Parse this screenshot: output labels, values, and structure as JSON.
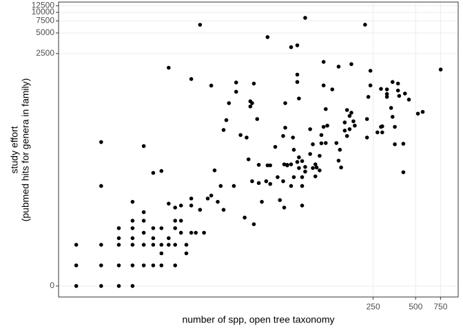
{
  "chart_data": {
    "type": "scatter",
    "xlabel": "number of spp, open tree taxonomy",
    "ylabel": [
      "study effort",
      "(pubmed hits for genera in family)"
    ],
    "xscale": "log1p",
    "yscale": "log1p",
    "xlim": [
      0.5,
      1000
    ],
    "ylim": [
      -0.31,
      14150
    ],
    "xticks": [
      250,
      500,
      750
    ],
    "yticks": [
      0,
      2500,
      5000,
      7500,
      10000,
      12500
    ],
    "grid": true,
    "color": "#000000",
    "x": [
      1,
      1,
      1,
      2,
      2,
      2,
      2,
      2,
      3,
      3,
      3,
      3,
      3,
      4,
      4,
      4,
      4,
      4,
      4,
      4,
      5,
      5,
      5,
      5,
      5,
      5,
      6,
      6,
      6,
      6,
      6,
      7,
      7,
      7,
      7,
      7,
      8,
      8,
      8,
      8,
      9,
      9,
      9,
      9,
      9,
      10,
      10,
      10,
      11,
      11,
      12,
      12,
      12,
      12,
      13,
      14,
      14,
      15,
      16,
      17,
      17,
      18,
      19,
      20,
      21,
      21,
      22,
      23,
      25,
      26,
      26,
      28,
      30,
      31,
      32,
      33,
      33,
      34,
      34,
      35,
      35,
      37,
      38,
      38,
      40,
      43,
      44,
      44,
      46,
      46,
      50,
      52,
      54,
      57,
      57,
      58,
      58,
      59,
      59,
      61,
      61,
      65,
      65,
      65,
      67,
      68,
      68,
      72,
      72,
      72,
      72,
      74,
      74,
      74,
      78,
      78,
      78,
      78,
      82,
      82,
      82,
      89,
      89,
      93,
      93,
      97,
      97,
      99,
      104,
      104,
      107,
      107,
      111,
      111,
      111,
      115,
      115,
      118,
      128,
      137,
      142,
      142,
      145,
      148,
      157,
      157,
      163,
      163,
      170,
      170,
      175,
      175,
      181,
      185,
      219,
      226,
      226,
      231,
      239,
      239,
      268,
      284,
      284,
      290,
      290,
      313,
      313,
      313,
      335,
      343,
      343,
      356,
      356,
      375,
      375,
      382,
      409,
      409,
      420,
      448,
      519,
      561,
      752
    ],
    "values": [
      0,
      1,
      3,
      0,
      1,
      3,
      28,
      126,
      0,
      1,
      3,
      4,
      6,
      0,
      1,
      3,
      4,
      6,
      8,
      16,
      1,
      3,
      5,
      8,
      11,
      110,
      1,
      3,
      4,
      6,
      44,
      1,
      2,
      3,
      6,
      47,
      1550,
      15,
      3,
      4,
      1,
      6,
      8,
      13,
      3,
      8,
      14,
      5,
      2,
      3,
      18,
      1060,
      14,
      5,
      5,
      6592,
      12,
      5,
      18,
      850,
      20,
      48,
      16,
      28,
      190,
      12,
      265,
      470,
      28,
      943,
      690,
      160,
      9,
      147,
      70,
      420,
      500,
      470,
      33,
      910,
      7,
      275,
      31,
      58,
      16,
      33,
      4350,
      57,
      57,
      30,
      107,
      38,
      17,
      155,
      33,
      13,
      59,
      470,
      205,
      57,
      58,
      3100,
      59,
      28,
      147,
      97,
      38,
      3300,
      960,
      1230,
      64,
      550,
      52,
      75,
      66,
      38,
      28,
      14,
      8312,
      54,
      46,
      195,
      84,
      117,
      52,
      59,
      39,
      53,
      48,
      79,
      121,
      160,
      855,
      1888,
      211,
      385,
      122,
      220,
      747,
      122,
      1610,
      67,
      97,
      53,
      245,
      186,
      373,
      155,
      305,
      195,
      1750,
      340,
      255,
      220,
      6600,
      275,
      147,
      580,
      1400,
      855,
      175,
      760,
      211,
      175,
      215,
      747,
      580,
      640,
      400,
      960,
      296,
      117,
      211,
      910,
      720,
      600,
      45,
      119,
      650,
      530,
      330,
      350,
      1460
    ]
  }
}
